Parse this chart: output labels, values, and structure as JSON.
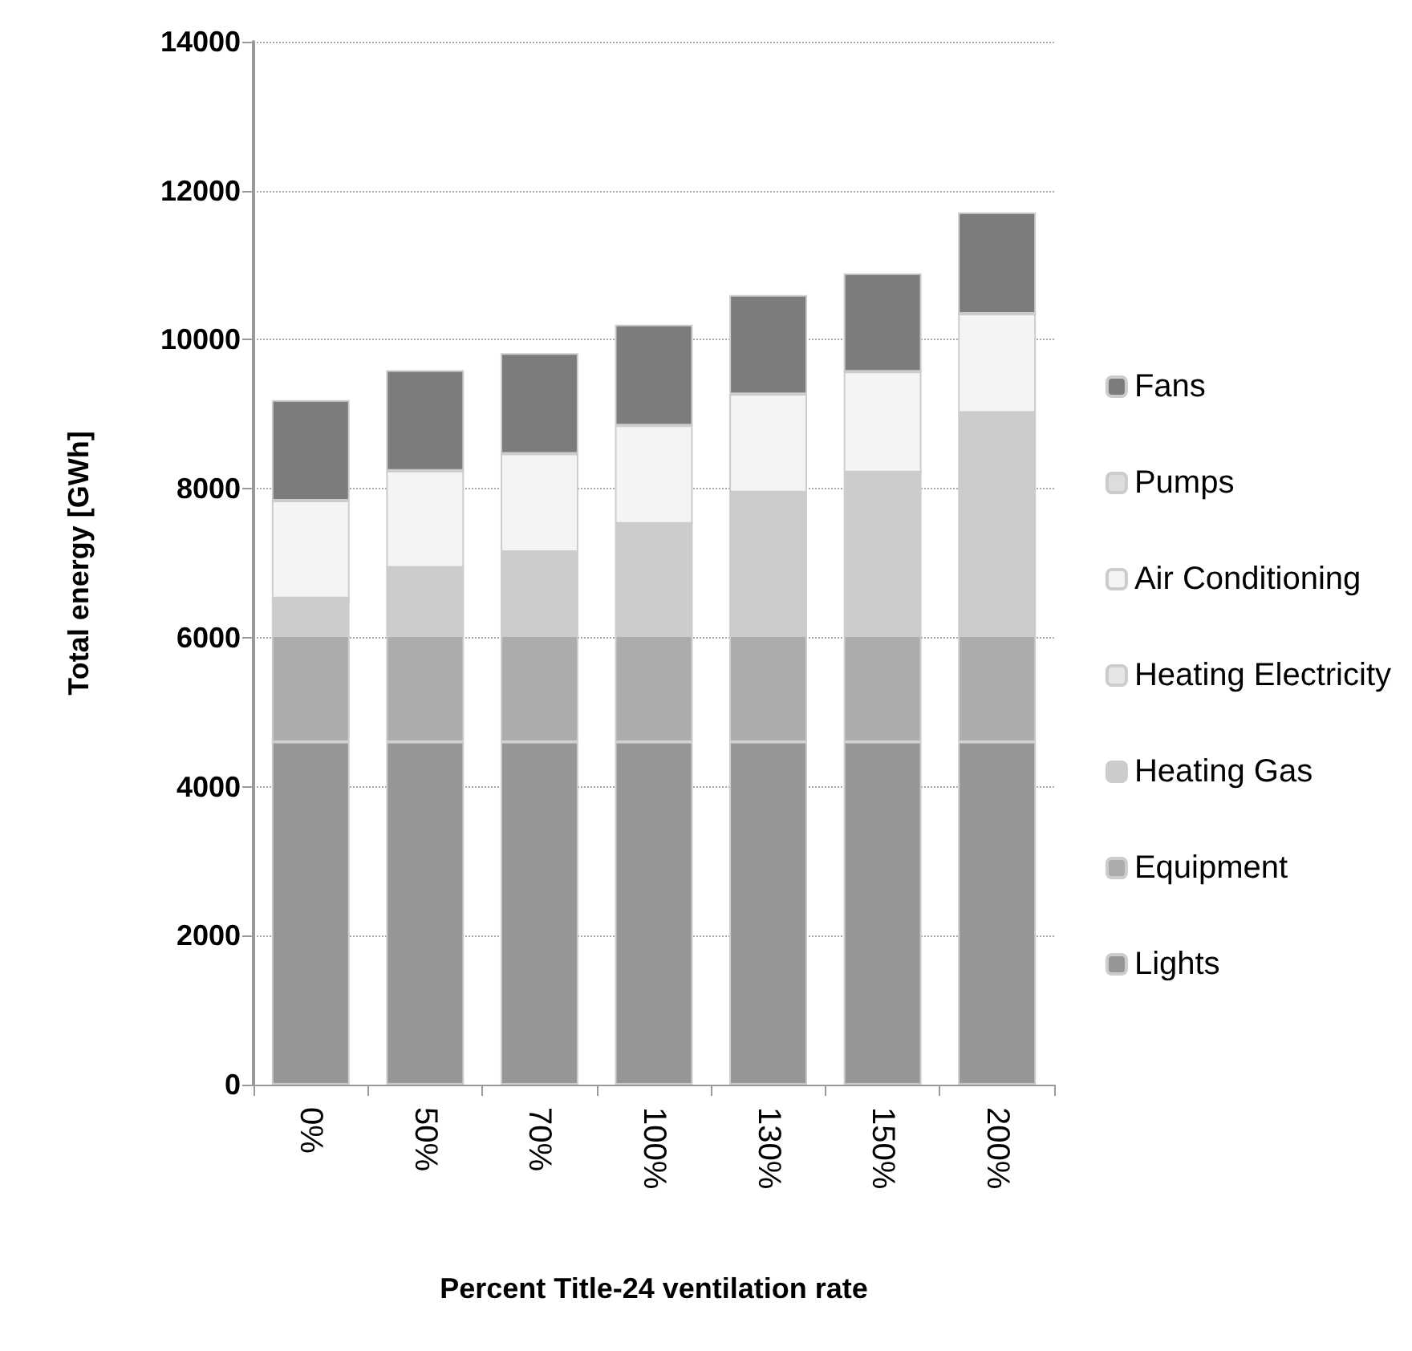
{
  "chart_data": {
    "type": "bar",
    "stacked": true,
    "xlabel": "Percent Title-24 ventilation rate",
    "ylabel": "Total energy [GWh]",
    "categories": [
      "0%",
      "50%",
      "70%",
      "100%",
      "130%",
      "150%",
      "200%"
    ],
    "ylim": [
      0,
      14000
    ],
    "yticks": [
      0,
      2000,
      4000,
      6000,
      8000,
      10000,
      12000,
      14000
    ],
    "grid": "y",
    "legend": "right",
    "series": [
      {
        "name": "Lights",
        "color": "#969696",
        "values": [
          4600,
          4600,
          4600,
          4600,
          4600,
          4600,
          4600
        ]
      },
      {
        "name": "Equipment",
        "color": "#acacac",
        "values": [
          1430,
          1430,
          1430,
          1430,
          1430,
          1430,
          1430
        ]
      },
      {
        "name": "Heating Gas",
        "color": "#cccccc",
        "values": [
          500,
          910,
          1120,
          1500,
          1920,
          2190,
          2990
        ]
      },
      {
        "name": "Heating Electricity",
        "color": "#e6e6e6",
        "values": [
          0,
          0,
          0,
          0,
          0,
          0,
          0
        ]
      },
      {
        "name": "Air Conditioning",
        "color": "#f4f4f4",
        "values": [
          1310,
          1300,
          1320,
          1320,
          1320,
          1350,
          1330
        ]
      },
      {
        "name": "Pumps",
        "color": "#dddddd",
        "values": [
          0,
          0,
          0,
          0,
          0,
          0,
          0
        ]
      },
      {
        "name": "Fans",
        "color": "#7c7c7c",
        "values": [
          1350,
          1350,
          1350,
          1350,
          1330,
          1320,
          1360
        ]
      }
    ]
  }
}
